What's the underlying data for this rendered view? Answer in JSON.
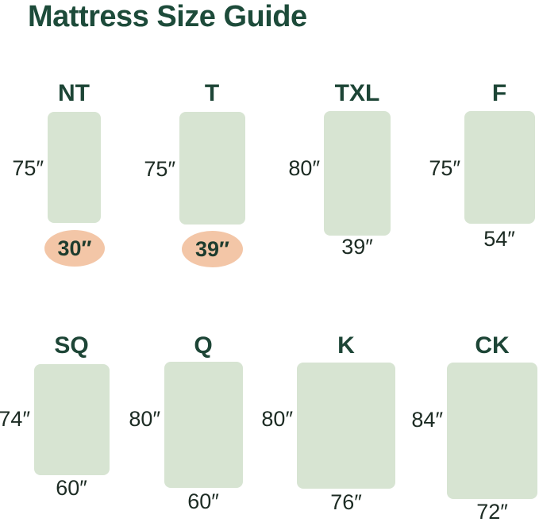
{
  "title": "Mattress Size Guide",
  "colors": {
    "heading_green": "#1d4b3a",
    "code_green": "#1d4536",
    "dimension_text": "#1c2b23",
    "mattress_fill": "#d7e4d2",
    "highlight_peach": "#f3c6a7"
  },
  "mattresses": [
    {
      "code": "NT",
      "length": "75″",
      "width": "30″",
      "width_highlighted": true
    },
    {
      "code": "T",
      "length": "75″",
      "width": "39″",
      "width_highlighted": true
    },
    {
      "code": "TXL",
      "length": "80″",
      "width": "39″",
      "width_highlighted": false
    },
    {
      "code": "F",
      "length": "75″",
      "width": "54″",
      "width_highlighted": false
    },
    {
      "code": "SQ",
      "length": "74″",
      "width": "60″",
      "width_highlighted": false
    },
    {
      "code": "Q",
      "length": "80″",
      "width": "60″",
      "width_highlighted": false
    },
    {
      "code": "K",
      "length": "80″",
      "width": "76″",
      "width_highlighted": false
    },
    {
      "code": "CK",
      "length": "84″",
      "width": "72″",
      "width_highlighted": false
    }
  ]
}
